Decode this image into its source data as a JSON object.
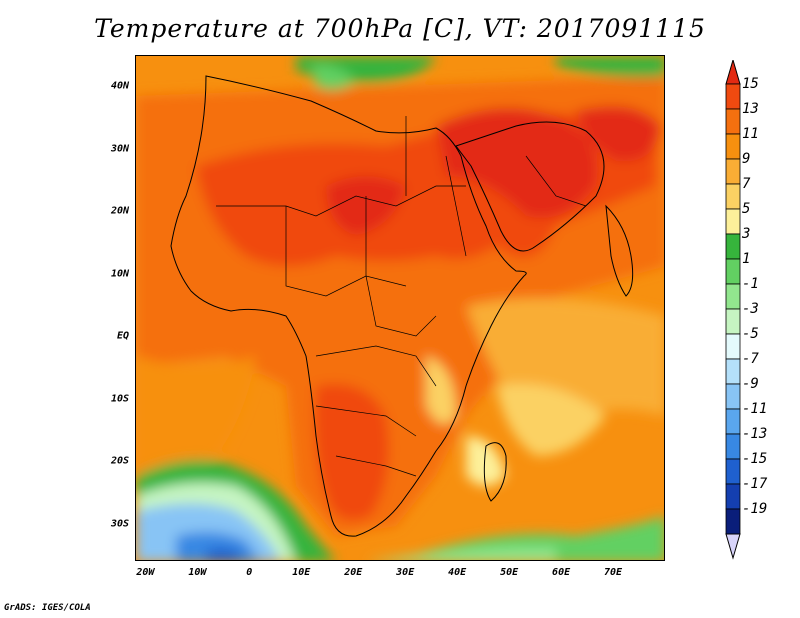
{
  "title": "Temperature at 700hPa [C], VT: 2017091115",
  "credit": "GrADS: IGES/COLA",
  "map": {
    "variable": "Temperature at 700hPa",
    "units": "C",
    "valid_time": "2017091115",
    "lon_range": [
      -22,
      80
    ],
    "lat_range": [
      -36,
      45
    ],
    "lat_ticks": [
      {
        "value": 40,
        "label": "40N"
      },
      {
        "value": 30,
        "label": "30N"
      },
      {
        "value": 20,
        "label": "20N"
      },
      {
        "value": 10,
        "label": "10N"
      },
      {
        "value": 0,
        "label": "EQ"
      },
      {
        "value": -10,
        "label": "10S"
      },
      {
        "value": -20,
        "label": "20S"
      },
      {
        "value": -30,
        "label": "30S"
      }
    ],
    "lon_ticks": [
      {
        "value": -20,
        "label": "20W"
      },
      {
        "value": -10,
        "label": "10W"
      },
      {
        "value": 0,
        "label": "0"
      },
      {
        "value": 10,
        "label": "10E"
      },
      {
        "value": 20,
        "label": "20E"
      },
      {
        "value": 30,
        "label": "30E"
      },
      {
        "value": 40,
        "label": "40E"
      },
      {
        "value": 50,
        "label": "50E"
      },
      {
        "value": 60,
        "label": "60E"
      },
      {
        "value": 70,
        "label": "70E"
      }
    ]
  },
  "colorbar": {
    "labels": [
      "15",
      "13",
      "11",
      "9",
      "7",
      "5",
      "3",
      "1",
      "-1",
      "-3",
      "-5",
      "-7",
      "-9",
      "-11",
      "-13",
      "-15",
      "-17",
      "-19"
    ],
    "colors": [
      "#e32a12",
      "#f04a10",
      "#f5700f",
      "#f7900f",
      "#f9ad35",
      "#fbd163",
      "#fdf09a",
      "#36b43c",
      "#62d062",
      "#92e68e",
      "#c6f5c2",
      "#e4fafc",
      "#b4e0fa",
      "#88c4f5",
      "#5aa6ee",
      "#3888e3",
      "#1f60cf",
      "#143fb0",
      "#0a1e7a",
      "#d8d4fa"
    ]
  }
}
